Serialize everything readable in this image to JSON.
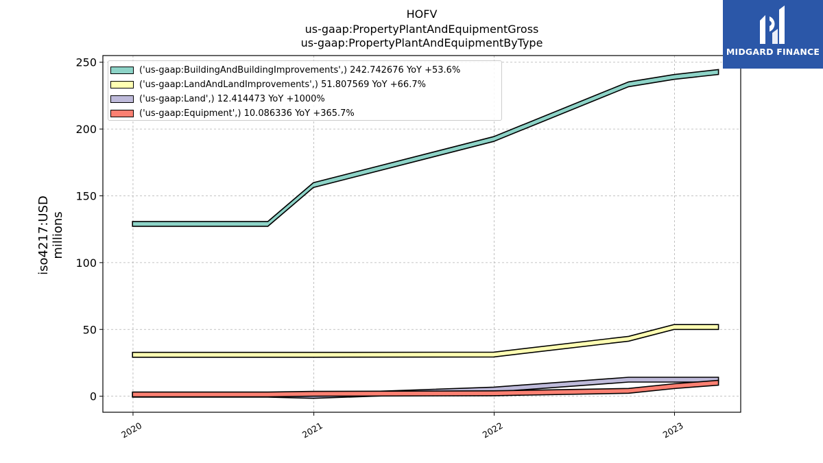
{
  "title_lines": [
    "HOFV",
    "us-gaap:PropertyPlantAndEquipmentGross",
    "us-gaap:PropertyPlantAndEquipmentByType"
  ],
  "logo": {
    "text": "MIDGARD FINANCE",
    "background": "#2b57a8",
    "icon": "midgard-logo-icon"
  },
  "ylabel_lines": [
    "iso4217:USD",
    "millions"
  ],
  "chart_data": {
    "type": "area",
    "title": "HOFV\nus-gaap:PropertyPlantAndEquipmentGross\nus-gaap:PropertyPlantAndEquipmentByType",
    "xlabel": "",
    "ylabel": "iso4217:USD millions",
    "xlim": [
      "2019-11-01",
      "2023-05-15"
    ],
    "ylim": [
      -12,
      255
    ],
    "x_ticks": [
      "2020",
      "2021",
      "2022",
      "2023"
    ],
    "y_ticks": [
      0,
      50,
      100,
      150,
      200,
      250
    ],
    "grid": true,
    "legend_position": "top-left",
    "series": [
      {
        "name": "('us-gaap:BuildingAndBuildingImprovements',) 242.742676 YoY +53.6%",
        "color": "#8dd3c7",
        "points": [
          [
            "2019-12-31",
            129
          ],
          [
            "2020-09-30",
            129
          ],
          [
            "2020-12-31",
            158
          ],
          [
            "2021-12-31",
            192.5
          ],
          [
            "2022-09-30",
            233.5
          ],
          [
            "2022-12-31",
            239
          ],
          [
            "2023-03-31",
            242.7
          ]
        ]
      },
      {
        "name": "('us-gaap:LandAndLandImprovements',) 51.807569 YoY +66.7%",
        "color": "#ffffb3",
        "points": [
          [
            "2019-12-31",
            31
          ],
          [
            "2020-09-30",
            31
          ],
          [
            "2020-12-31",
            31
          ],
          [
            "2021-12-31",
            31.2
          ],
          [
            "2022-09-30",
            43
          ],
          [
            "2022-12-31",
            51.8
          ],
          [
            "2023-03-31",
            51.8
          ]
        ]
      },
      {
        "name": "('us-gaap:Land',) 12.414473 YoY +1000%",
        "color": "#bebada",
        "points": [
          [
            "2019-12-31",
            1.1
          ],
          [
            "2020-09-30",
            1.1
          ],
          [
            "2020-12-31",
            0.2
          ],
          [
            "2021-12-31",
            5
          ],
          [
            "2022-09-30",
            12.4
          ],
          [
            "2022-12-31",
            12.4
          ],
          [
            "2023-03-31",
            12.4
          ]
        ]
      },
      {
        "name": "('us-gaap:Equipment',) 10.086336 YoY +365.7%",
        "color": "#fb8072",
        "points": [
          [
            "2019-12-31",
            1.3
          ],
          [
            "2020-09-30",
            1.3
          ],
          [
            "2020-12-31",
            1.8
          ],
          [
            "2021-12-31",
            2.2
          ],
          [
            "2022-09-30",
            4
          ],
          [
            "2022-12-31",
            7.5
          ],
          [
            "2023-03-31",
            10.1
          ]
        ]
      }
    ]
  }
}
